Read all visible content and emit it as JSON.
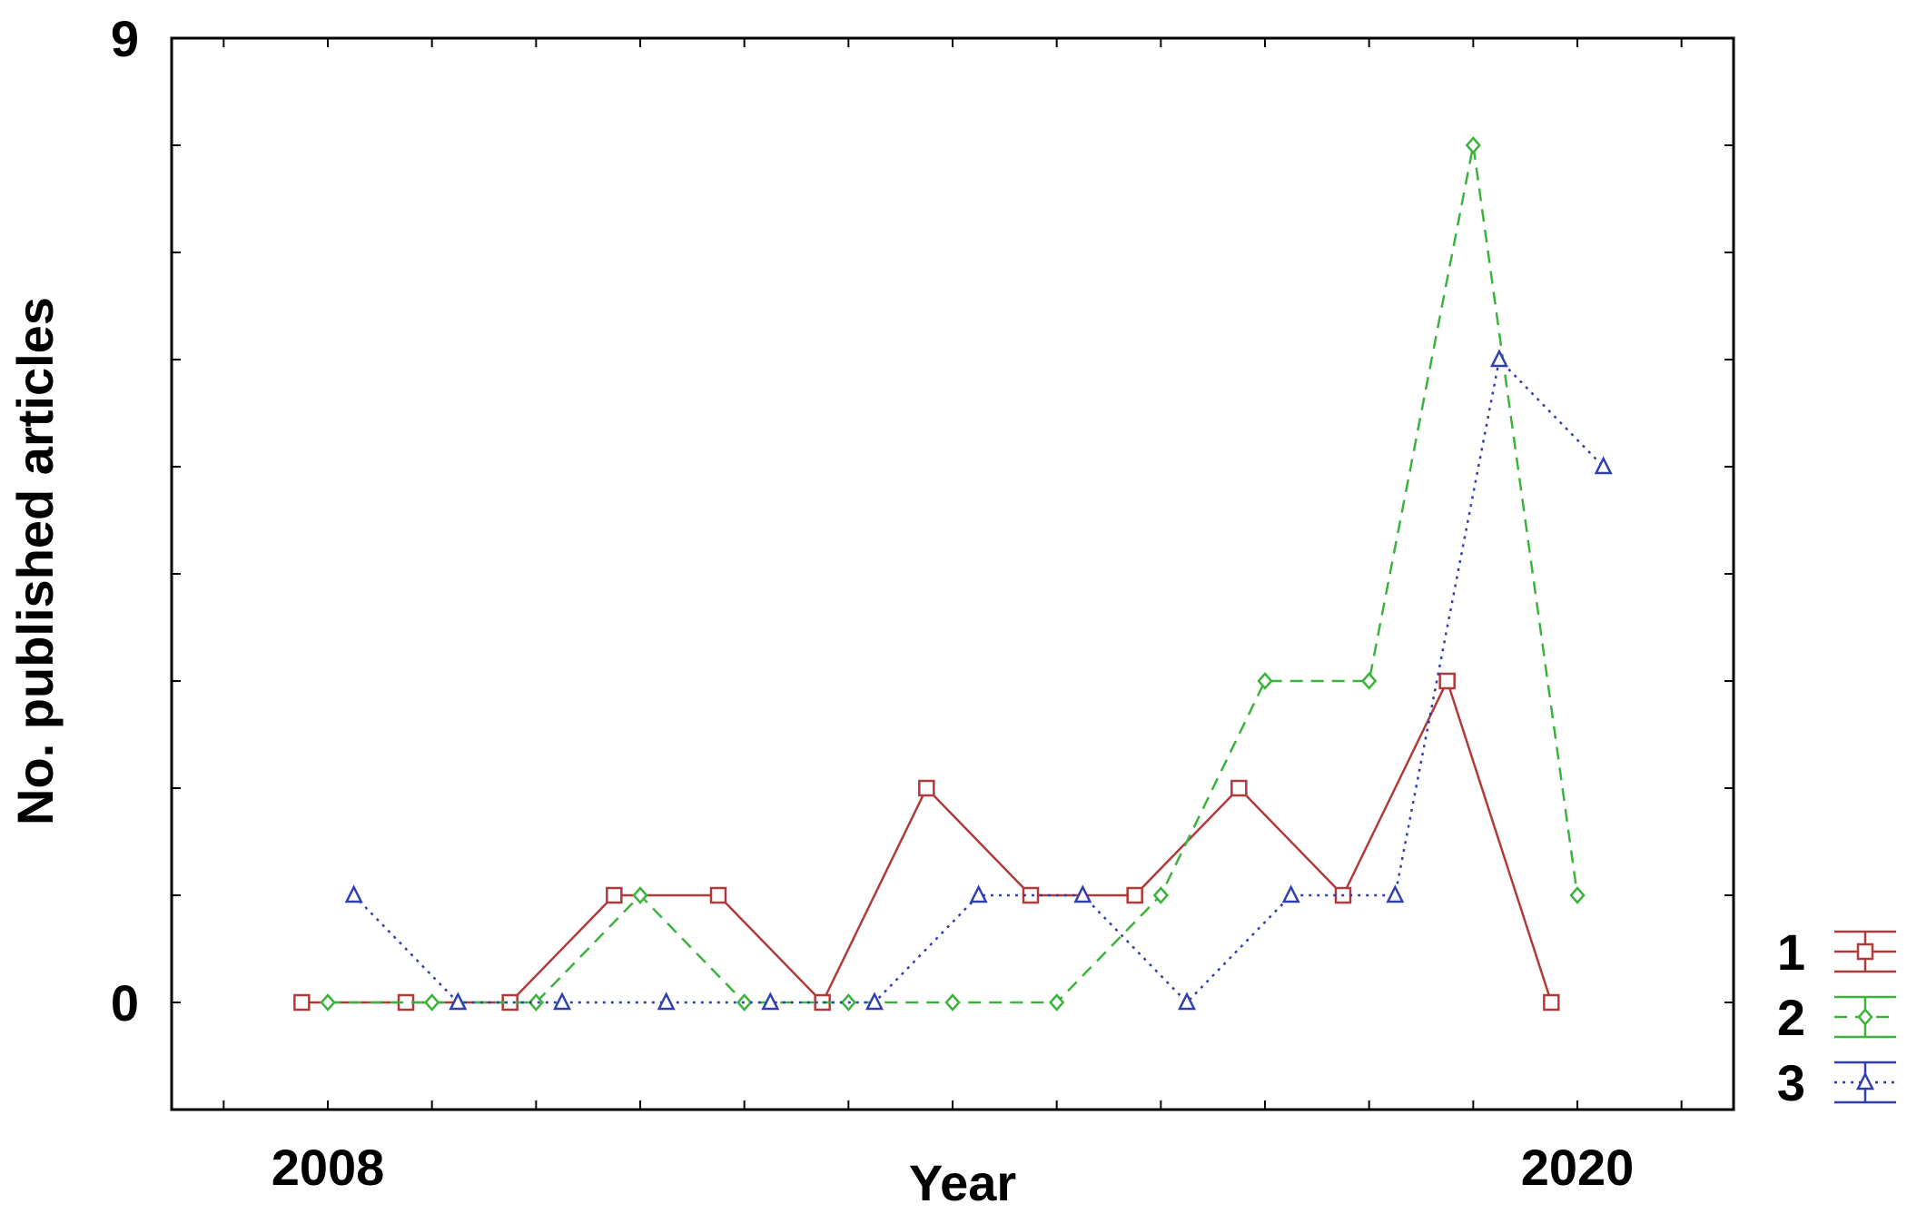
{
  "chart_data": {
    "type": "line",
    "title": "",
    "xlabel": "Year",
    "ylabel": "No. published articles",
    "xlim": [
      2006.5,
      2021.5
    ],
    "ylim": [
      -1,
      9
    ],
    "x_ticks_labeled": [
      {
        "value": 2008,
        "label": "2008"
      },
      {
        "value": 2020,
        "label": "2020"
      }
    ],
    "y_ticks_labeled": [
      {
        "value": 0,
        "label": "0"
      },
      {
        "value": 9,
        "label": "9"
      }
    ],
    "grid": false,
    "legend_position": "bottom-right",
    "series": [
      {
        "name": "1",
        "color": "#b03a3a",
        "marker": "square",
        "line_style": "solid",
        "x": [
          2007.75,
          2008.75,
          2009.75,
          2010.75,
          2011.75,
          2012.75,
          2013.75,
          2014.75,
          2015.75,
          2016.75,
          2017.75,
          2018.75,
          2019.75
        ],
        "y": [
          0,
          0,
          0,
          1,
          1,
          0,
          2,
          1,
          1,
          2,
          1,
          3,
          0
        ]
      },
      {
        "name": "2",
        "color": "#3cb33c",
        "marker": "diamond",
        "line_style": "dashed",
        "x": [
          2008.0,
          2009.0,
          2010.0,
          2011.0,
          2012.0,
          2013.0,
          2014.0,
          2015.0,
          2016.0,
          2017.0,
          2018.0,
          2019.0,
          2020.0
        ],
        "y": [
          0,
          0,
          0,
          1,
          0,
          0,
          0,
          0,
          1,
          3,
          3,
          8,
          1
        ]
      },
      {
        "name": "3",
        "color": "#2f3fae",
        "marker": "triangle",
        "line_style": "dotted",
        "x": [
          2008.25,
          2009.25,
          2010.25,
          2011.25,
          2012.25,
          2013.25,
          2014.25,
          2015.25,
          2016.25,
          2017.25,
          2018.25,
          2019.25,
          2020.25
        ],
        "y": [
          1,
          0,
          0,
          0,
          0,
          0,
          1,
          1,
          0,
          1,
          1,
          6,
          5
        ]
      }
    ]
  }
}
